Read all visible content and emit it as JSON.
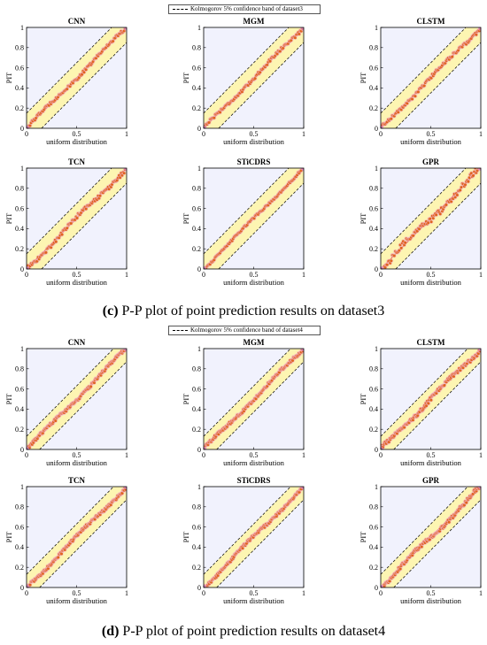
{
  "sections": [
    {
      "legend": "Kolmogorov 5% confidence band of dataset3",
      "caption_letter": "(c)",
      "caption_text": " P-P plot of point prediction results on dataset3"
    },
    {
      "legend": "Kolmogorov 5% confidence band of dataset4",
      "caption_letter": "(d)",
      "caption_text": " P-P plot of point prediction results on dataset4"
    }
  ],
  "colors": {
    "band": "#fdf5b2",
    "plot_bg": "#f1f2fd",
    "diagonal": "#e04848",
    "points": "#e0641e",
    "point_halo": "#f2b0c8",
    "endpoint": "#e08ad2"
  },
  "chart_data": [
    {
      "type": "scatter",
      "title": "CNN",
      "xlabel": "uniform distribution",
      "ylabel": "PIT",
      "xlim": [
        0,
        1
      ],
      "ylim": [
        0,
        1
      ],
      "xticks": [
        "0",
        "0.5",
        "1"
      ],
      "yticks": [
        "0",
        "0.2",
        "0.4",
        "0.6",
        "0.8",
        "1"
      ],
      "band_halfwidth": 0.15,
      "reference_line": [
        [
          0,
          0
        ],
        [
          1,
          1
        ]
      ],
      "n_points": 100,
      "max_deviation": 0.03
    },
    {
      "type": "scatter",
      "title": "MGM",
      "xlabel": "uniform distribution",
      "ylabel": "PIT",
      "xlim": [
        0,
        1
      ],
      "ylim": [
        0,
        1
      ],
      "xticks": [
        "0",
        "0.5",
        "1"
      ],
      "yticks": [
        "0",
        "0.2",
        "0.4",
        "0.6",
        "0.8",
        "1"
      ],
      "band_halfwidth": 0.15,
      "reference_line": [
        [
          0,
          0
        ],
        [
          1,
          1
        ]
      ],
      "n_points": 100,
      "max_deviation": 0.03
    },
    {
      "type": "scatter",
      "title": "CLSTM",
      "xlabel": "uniform distribution",
      "ylabel": "PIT",
      "xlim": [
        0,
        1
      ],
      "ylim": [
        0,
        1
      ],
      "xticks": [
        "0",
        "0.5",
        "1"
      ],
      "yticks": [
        "0",
        "0.2",
        "0.4",
        "0.6",
        "0.8",
        "1"
      ],
      "band_halfwidth": 0.15,
      "reference_line": [
        [
          0,
          0
        ],
        [
          1,
          1
        ]
      ],
      "n_points": 100,
      "max_deviation": 0.03
    },
    {
      "type": "scatter",
      "title": "TCN",
      "xlabel": "uniform distribution",
      "ylabel": "PIT",
      "xlim": [
        0,
        1
      ],
      "ylim": [
        0,
        1
      ],
      "xticks": [
        "0",
        "0.5",
        "1"
      ],
      "yticks": [
        "0",
        "0.2",
        "0.4",
        "0.6",
        "0.8",
        "1"
      ],
      "band_halfwidth": 0.15,
      "reference_line": [
        [
          0,
          0
        ],
        [
          1,
          1
        ]
      ],
      "n_points": 100,
      "max_deviation": 0.04
    },
    {
      "type": "scatter",
      "title": "STiCDRS",
      "xlabel": "uniform distribution",
      "ylabel": "PIT",
      "xlim": [
        0,
        1
      ],
      "ylim": [
        0,
        1
      ],
      "xticks": [
        "0",
        "0.5",
        "1"
      ],
      "yticks": [
        "0",
        "0.2",
        "0.4",
        "0.6",
        "0.8",
        "1"
      ],
      "band_halfwidth": 0.15,
      "reference_line": [
        [
          0,
          0
        ],
        [
          1,
          1
        ]
      ],
      "n_points": 100,
      "max_deviation": 0.02
    },
    {
      "type": "scatter",
      "title": "GPR",
      "xlabel": "uniform distribution",
      "ylabel": "PIT",
      "xlim": [
        0,
        1
      ],
      "ylim": [
        0,
        1
      ],
      "xticks": [
        "0",
        "0.5",
        "1"
      ],
      "yticks": [
        "0",
        "0.2",
        "0.4",
        "0.6",
        "0.8",
        "1"
      ],
      "band_halfwidth": 0.15,
      "reference_line": [
        [
          0,
          0
        ],
        [
          1,
          1
        ]
      ],
      "n_points": 100,
      "max_deviation": 0.06
    },
    {
      "type": "scatter",
      "title": "CNN",
      "xlabel": "uniform distribution",
      "ylabel": "PIT",
      "xlim": [
        0,
        1
      ],
      "ylim": [
        0,
        1
      ],
      "xticks": [
        "0",
        "0.5",
        "1"
      ],
      "yticks": [
        "0",
        "0.2",
        "0.4",
        "0.6",
        "0.8",
        "1"
      ],
      "band_halfwidth": 0.13,
      "reference_line": [
        [
          0,
          0
        ],
        [
          1,
          1
        ]
      ],
      "n_points": 150,
      "max_deviation": 0.03
    },
    {
      "type": "scatter",
      "title": "MGM",
      "xlabel": "uniform distribution",
      "ylabel": "PIT",
      "xlim": [
        0,
        1
      ],
      "ylim": [
        0,
        1
      ],
      "xticks": [
        "0",
        "0.5",
        "1"
      ],
      "yticks": [
        "0",
        "0.2",
        "0.4",
        "0.6",
        "0.8",
        "1"
      ],
      "band_halfwidth": 0.13,
      "reference_line": [
        [
          0,
          0
        ],
        [
          1,
          1
        ]
      ],
      "n_points": 150,
      "max_deviation": 0.03
    },
    {
      "type": "scatter",
      "title": "CLSTM",
      "xlabel": "uniform distribution",
      "ylabel": "PIT",
      "xlim": [
        0,
        1
      ],
      "ylim": [
        0,
        1
      ],
      "xticks": [
        "0",
        "0.5",
        "1"
      ],
      "yticks": [
        "0",
        "0.2",
        "0.4",
        "0.6",
        "0.8",
        "1"
      ],
      "band_halfwidth": 0.13,
      "reference_line": [
        [
          0,
          0
        ],
        [
          1,
          1
        ]
      ],
      "n_points": 150,
      "max_deviation": 0.04
    },
    {
      "type": "scatter",
      "title": "TCN",
      "xlabel": "uniform distribution",
      "ylabel": "PIT",
      "xlim": [
        0,
        1
      ],
      "ylim": [
        0,
        1
      ],
      "xticks": [
        "0",
        "0.5",
        "1"
      ],
      "yticks": [
        "0",
        "0.2",
        "0.4",
        "0.6",
        "0.8",
        "1"
      ],
      "band_halfwidth": 0.13,
      "reference_line": [
        [
          0,
          0
        ],
        [
          1,
          1
        ]
      ],
      "n_points": 150,
      "max_deviation": 0.03
    },
    {
      "type": "scatter",
      "title": "STiCDRS",
      "xlabel": "uniform distribution",
      "ylabel": "PIT",
      "xlim": [
        0,
        1
      ],
      "ylim": [
        0,
        1
      ],
      "xticks": [
        "0",
        "0.5",
        "1"
      ],
      "yticks": [
        "0",
        "0.2",
        "0.4",
        "0.6",
        "0.8",
        "1"
      ],
      "band_halfwidth": 0.13,
      "reference_line": [
        [
          0,
          0
        ],
        [
          1,
          1
        ]
      ],
      "n_points": 150,
      "max_deviation": 0.03
    },
    {
      "type": "scatter",
      "title": "GPR",
      "xlabel": "uniform distribution",
      "ylabel": "PIT",
      "xlim": [
        0,
        1
      ],
      "ylim": [
        0,
        1
      ],
      "xticks": [
        "0",
        "0.5",
        "1"
      ],
      "yticks": [
        "0",
        "0.2",
        "0.4",
        "0.6",
        "0.8",
        "1"
      ],
      "band_halfwidth": 0.13,
      "reference_line": [
        [
          0,
          0
        ],
        [
          1,
          1
        ]
      ],
      "n_points": 150,
      "max_deviation": 0.04
    }
  ]
}
